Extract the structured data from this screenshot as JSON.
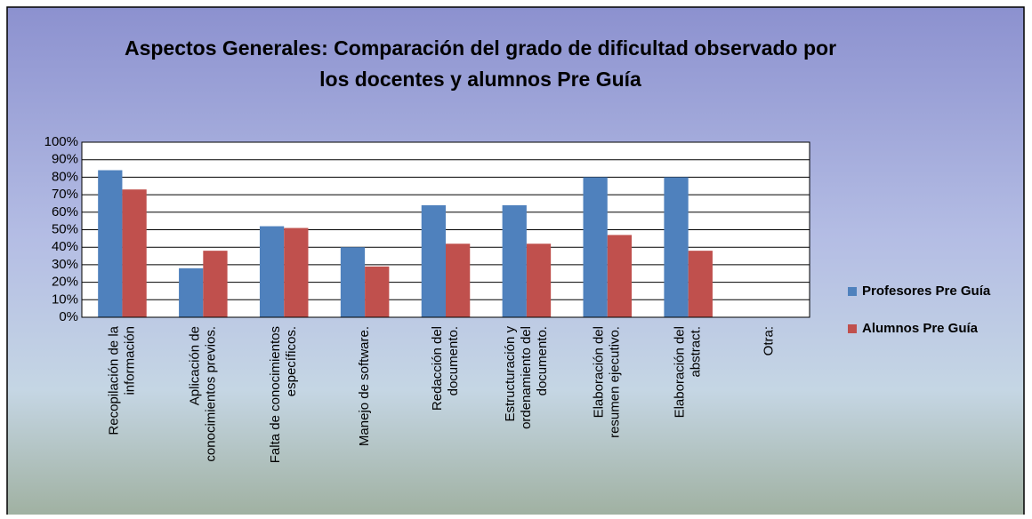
{
  "chart_data": {
    "type": "bar",
    "title": [
      "Aspectos Generales: Comparación del grado de dificultad observado por",
      "los docentes y alumnos Pre Guía"
    ],
    "categories": [
      [
        "Recopilación de la",
        "información"
      ],
      [
        "Aplicación de",
        "conocimientos previos."
      ],
      [
        "Falta de conocimientos",
        "específicos."
      ],
      [
        "Manejo de software."
      ],
      [
        "Redacción del",
        "documento."
      ],
      [
        "Estructuración y",
        "ordenamiento del",
        "documento."
      ],
      [
        "Elaboración del",
        "resumen ejecutivo."
      ],
      [
        "Elaboración del",
        "abstract."
      ],
      [
        "Otra:"
      ]
    ],
    "series": [
      {
        "name": "Profesores Pre Guía",
        "color": "#4f81bd",
        "values": [
          84,
          28,
          52,
          40,
          64,
          64,
          80,
          80,
          null
        ]
      },
      {
        "name": "Alumnos Pre Guía",
        "color": "#c0504d",
        "values": [
          73,
          38,
          51,
          29,
          42,
          42,
          47,
          38,
          null
        ]
      }
    ],
    "ylim": [
      0,
      100
    ],
    "yticks": [
      {
        "value": 0,
        "label": "0%"
      },
      {
        "value": 10,
        "label": "10%"
      },
      {
        "value": 20,
        "label": "20%"
      },
      {
        "value": 30,
        "label": "30%"
      },
      {
        "value": 40,
        "label": "40%"
      },
      {
        "value": 50,
        "label": "50%"
      },
      {
        "value": 60,
        "label": "60%"
      },
      {
        "value": 70,
        "label": "70%"
      },
      {
        "value": 80,
        "label": "80%"
      },
      {
        "value": 90,
        "label": "90%"
      },
      {
        "value": 100,
        "label": "100%"
      }
    ],
    "grid": true,
    "legend": "right"
  }
}
